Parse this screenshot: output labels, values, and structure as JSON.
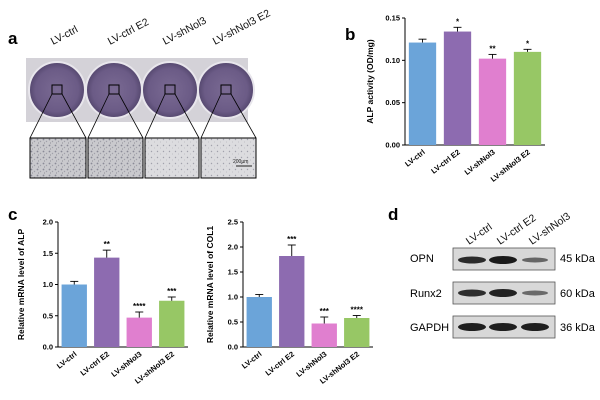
{
  "panels": {
    "a": "a",
    "b": "b",
    "c": "c",
    "d": "d"
  },
  "panel_a": {
    "wells": [
      "LV-ctrl",
      "LV-ctrl E2",
      "LV-shNol3",
      "LV-shNol3 E2"
    ],
    "scale_bar": "200µm"
  },
  "panel_d": {
    "lanes": [
      "LV-ctrl",
      "LV-ctrl E2",
      "LV-shNol3"
    ],
    "proteins": [
      "OPN",
      "Runx2",
      "GAPDH"
    ],
    "sizes": [
      "45 kDa",
      "60 kDa",
      "36 kDa"
    ]
  },
  "chart_data": [
    {
      "type": "bar",
      "panel": "b",
      "categories": [
        "LV-ctrl",
        "LV-ctrl E2",
        "LV-shNol3",
        "LV-shNol3 E2"
      ],
      "values": [
        0.121,
        0.134,
        0.102,
        0.11
      ],
      "errors": [
        0.004,
        0.005,
        0.005,
        0.003
      ],
      "significance": [
        "",
        "*",
        "**",
        "*"
      ],
      "colors": [
        "#6ba4d9",
        "#8d6bb0",
        "#e07fcf",
        "#97c765"
      ],
      "ylabel": "ALP activity (OD/mg)",
      "ylim": [
        0,
        0.15
      ],
      "yticks": [
        "0.00",
        "0.05",
        "0.10",
        "0.15"
      ],
      "ytick_values": [
        0,
        0.05,
        0.1,
        0.15
      ]
    },
    {
      "type": "bar",
      "panel": "c",
      "categories": [
        "LV-ctrl",
        "LV-ctrl E2",
        "LV-shNol3",
        "LV-shNol3 E2"
      ],
      "values": [
        1.0,
        1.43,
        0.47,
        0.74
      ],
      "errors": [
        0.05,
        0.12,
        0.09,
        0.06
      ],
      "significance": [
        "",
        "**",
        "****",
        "***"
      ],
      "colors": [
        "#6ba4d9",
        "#8d6bb0",
        "#e07fcf",
        "#97c765"
      ],
      "ylabel": "Relative mRNA level of ALP",
      "ylim": [
        0,
        2.0
      ],
      "yticks": [
        "0.0",
        "0.5",
        "1.0",
        "1.5",
        "2.0"
      ],
      "ytick_values": [
        0,
        0.5,
        1.0,
        1.5,
        2.0
      ]
    },
    {
      "type": "bar",
      "panel": "c",
      "categories": [
        "LV-ctrl",
        "LV-ctrl E2",
        "LV-shNol3",
        "LV-shNol3 E2"
      ],
      "values": [
        1.0,
        1.82,
        0.47,
        0.58
      ],
      "errors": [
        0.05,
        0.22,
        0.13,
        0.05
      ],
      "significance": [
        "",
        "***",
        "***",
        "****"
      ],
      "colors": [
        "#6ba4d9",
        "#8d6bb0",
        "#e07fcf",
        "#97c765"
      ],
      "ylabel": "Relative mRNA level of COL1",
      "ylim": [
        0,
        2.5
      ],
      "yticks": [
        "0.0",
        "0.5",
        "1.0",
        "1.5",
        "2.0",
        "2.5"
      ],
      "ytick_values": [
        0,
        0.5,
        1.0,
        1.5,
        2.0,
        2.5
      ]
    }
  ]
}
